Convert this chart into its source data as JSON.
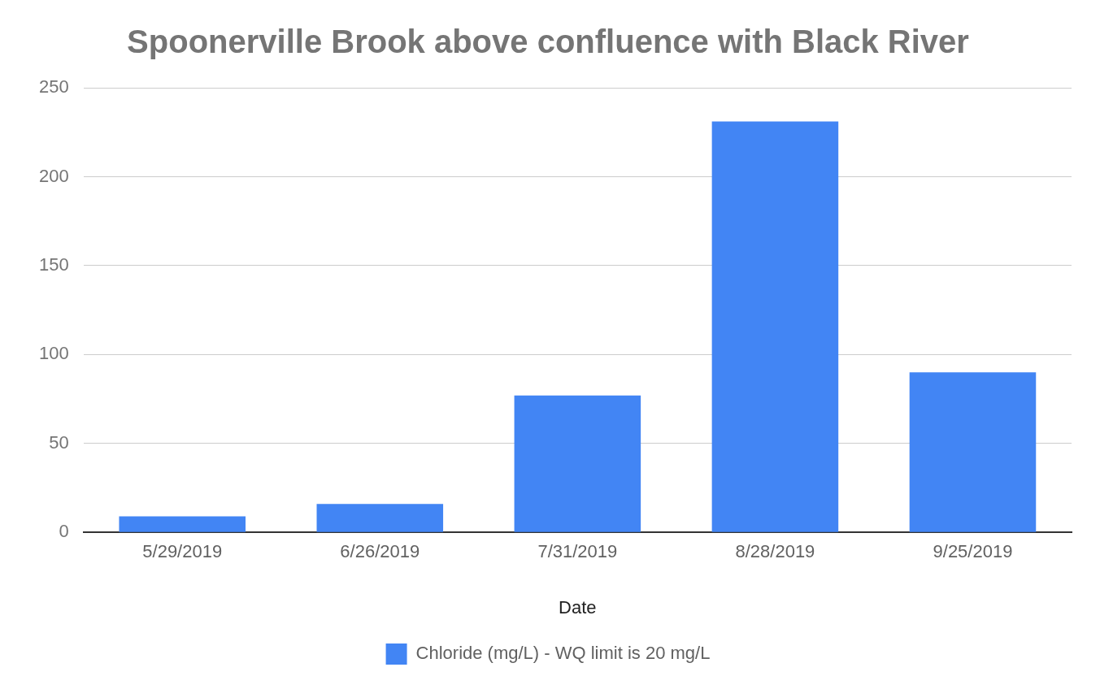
{
  "chart_data": {
    "type": "bar",
    "title": "Spoonerville Brook above confluence with Black River",
    "xlabel": "Date",
    "categories": [
      "5/29/2019",
      "6/26/2019",
      "7/31/2019",
      "8/28/2019",
      "9/25/2019"
    ],
    "series": [
      {
        "name": "Chloride (mg/L) - WQ limit is 20 mg/L",
        "color": "#4285f4",
        "values": [
          9,
          16,
          77,
          231,
          90
        ]
      }
    ],
    "ylim": [
      0,
      250
    ],
    "yticks": [
      0,
      50,
      100,
      150,
      200,
      250
    ],
    "grid": "y",
    "legend": "bottom"
  }
}
